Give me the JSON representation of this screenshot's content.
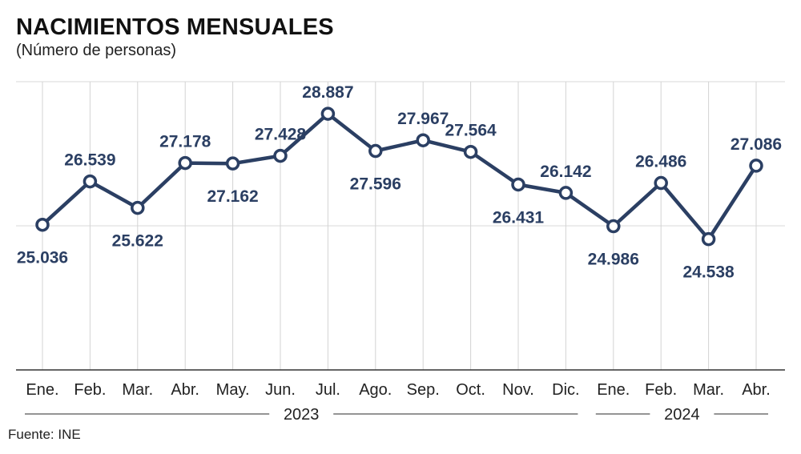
{
  "header": {
    "title": "NACIMIENTOS MENSUALES",
    "subtitle": "(Número de personas)"
  },
  "footer": {
    "source": "Fuente: INE"
  },
  "colors": {
    "series": "#2b3f63",
    "grid": "#d9d9d9"
  },
  "chart_data": {
    "type": "line",
    "title": "NACIMIENTOS MENSUALES",
    "subtitle": "(Número de personas)",
    "categories": [
      "Ene.",
      "Feb.",
      "Mar.",
      "Abr.",
      "May.",
      "Jun.",
      "Jul.",
      "Ago.",
      "Sep.",
      "Oct.",
      "Nov.",
      "Dic.",
      "Ene.",
      "Feb.",
      "Mar.",
      "Abr."
    ],
    "values": [
      25036,
      26539,
      25622,
      27178,
      27162,
      27428,
      28887,
      27596,
      27967,
      27564,
      26431,
      26142,
      24986,
      26486,
      24538,
      27086
    ],
    "value_labels": [
      "25.036",
      "26.539",
      "25.622",
      "27.178",
      "27.162",
      "27.428",
      "28.887",
      "27.596",
      "27.967",
      "27.564",
      "26.431",
      "26.142",
      "24.986",
      "26.486",
      "24.538",
      "27.086"
    ],
    "label_position": [
      "below",
      "above",
      "below",
      "above",
      "below",
      "above",
      "above",
      "below",
      "above",
      "above",
      "below",
      "above",
      "below",
      "above",
      "below",
      "above"
    ],
    "year_groups": [
      {
        "label": "2023",
        "start": 0,
        "end": 11
      },
      {
        "label": "2024",
        "start": 12,
        "end": 15
      }
    ],
    "ylim": [
      20000,
      30000
    ],
    "grid": true,
    "legend": false,
    "source": "Fuente: INE"
  }
}
